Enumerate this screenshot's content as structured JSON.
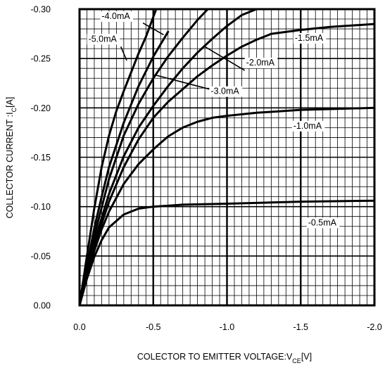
{
  "chart_data": {
    "type": "line",
    "title": "",
    "xlabel": {
      "main": "COLECTOR TO EMITTER VOLTAGE:V",
      "sub": "CE",
      "unit": "[V]"
    },
    "ylabel": {
      "main": "COLLECTOR CURRENT :I",
      "sub": "C",
      "unit": "[A]"
    },
    "xlim": [
      0.0,
      -2.0
    ],
    "ylim": [
      0.0,
      -0.3
    ],
    "x_ticks": [
      0.0,
      -0.5,
      -1.0,
      -1.5,
      -2.0
    ],
    "x_tick_labels": [
      "0.0",
      "-0.5",
      "-1.0",
      "-1.5",
      "-2.0"
    ],
    "y_ticks": [
      0.0,
      -0.05,
      -0.1,
      -0.15,
      -0.2,
      -0.25,
      -0.3
    ],
    "y_tick_labels": [
      "0.00",
      "-0.05",
      "-0.10",
      "-0.15",
      "-0.20",
      "-0.25",
      "-0.30"
    ],
    "grid": true,
    "legend": "none",
    "series": [
      {
        "name": "-0.5mA",
        "label_at": [
          -1.55,
          -0.081
        ],
        "x": [
          0.0,
          -0.05,
          -0.1,
          -0.15,
          -0.2,
          -0.3,
          -0.4,
          -0.5,
          -0.7,
          -1.0,
          -1.5,
          -2.0
        ],
        "y": [
          0.0,
          -0.027,
          -0.049,
          -0.066,
          -0.079,
          -0.092,
          -0.098,
          -0.1,
          -0.102,
          -0.103,
          -0.105,
          -0.106
        ]
      },
      {
        "name": "-1.0mA",
        "label_at": [
          -1.45,
          -0.179
        ],
        "x": [
          0.0,
          -0.05,
          -0.1,
          -0.15,
          -0.2,
          -0.3,
          -0.4,
          -0.5,
          -0.6,
          -0.7,
          -0.8,
          -0.9,
          -1.0,
          -1.2,
          -1.5,
          -2.0
        ],
        "y": [
          0.0,
          -0.03,
          -0.055,
          -0.077,
          -0.095,
          -0.123,
          -0.143,
          -0.158,
          -0.171,
          -0.18,
          -0.186,
          -0.19,
          -0.192,
          -0.195,
          -0.198,
          -0.2
        ]
      },
      {
        "name": "-1.5mA",
        "label_at": [
          -1.46,
          -0.268
        ],
        "x": [
          0.0,
          -0.05,
          -0.1,
          -0.2,
          -0.3,
          -0.4,
          -0.5,
          -0.6,
          -0.7,
          -0.8,
          -0.9,
          -1.0,
          -1.1,
          -1.2,
          -1.3,
          -1.5,
          -1.7,
          -2.0
        ],
        "y": [
          0.0,
          -0.032,
          -0.06,
          -0.105,
          -0.14,
          -0.168,
          -0.19,
          -0.206,
          -0.219,
          -0.232,
          -0.243,
          -0.253,
          -0.262,
          -0.269,
          -0.275,
          -0.279,
          -0.282,
          -0.285
        ]
      },
      {
        "name": "-2.0mA",
        "label_at": [
          -1.13,
          -0.243
        ],
        "x": [
          0.0,
          -0.05,
          -0.1,
          -0.2,
          -0.3,
          -0.4,
          -0.5,
          -0.6,
          -0.7,
          -0.8,
          -0.9,
          -1.0,
          -1.1,
          -1.2
        ],
        "y": [
          0.0,
          -0.034,
          -0.064,
          -0.113,
          -0.151,
          -0.18,
          -0.202,
          -0.222,
          -0.24,
          -0.256,
          -0.27,
          -0.283,
          -0.294,
          -0.3
        ]
      },
      {
        "name": "-3.0mA",
        "label_at": [
          -0.89,
          -0.214
        ],
        "x": [
          0.0,
          -0.05,
          -0.1,
          -0.2,
          -0.3,
          -0.4,
          -0.5,
          -0.6,
          -0.7,
          -0.8,
          -0.87
        ],
        "y": [
          0.0,
          -0.036,
          -0.07,
          -0.128,
          -0.172,
          -0.204,
          -0.23,
          -0.252,
          -0.271,
          -0.289,
          -0.3
        ]
      },
      {
        "name": "-4.0mA",
        "label_at": [
          -0.15,
          -0.29
        ],
        "x": [
          0.0,
          -0.05,
          -0.1,
          -0.15,
          -0.2,
          -0.3,
          -0.4,
          -0.5,
          -0.6
        ],
        "y": [
          0.0,
          -0.04,
          -0.078,
          -0.11,
          -0.14,
          -0.185,
          -0.222,
          -0.252,
          -0.277
        ]
      },
      {
        "name": "-5.0mA",
        "label_at": [
          -0.06,
          -0.267
        ],
        "x": [
          0.0,
          -0.05,
          -0.1,
          -0.15,
          -0.2,
          -0.25,
          -0.3,
          -0.35,
          -0.4,
          -0.45,
          -0.52
        ],
        "y": [
          0.0,
          -0.05,
          -0.098,
          -0.14,
          -0.172,
          -0.197,
          -0.217,
          -0.236,
          -0.255,
          -0.272,
          -0.3
        ]
      }
    ]
  }
}
